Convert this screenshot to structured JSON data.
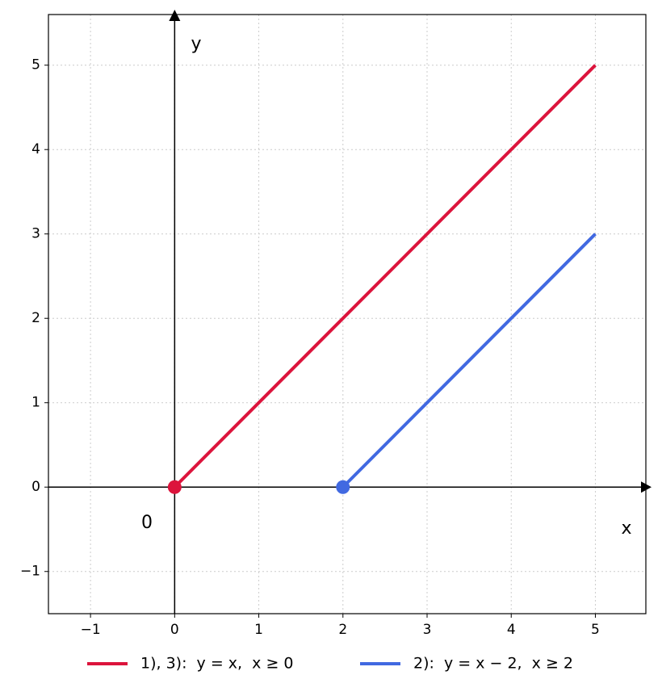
{
  "chart_data": {
    "type": "line",
    "annotations": {
      "y_axis": "y",
      "x_axis": "x",
      "origin": "0"
    },
    "series": [
      {
        "name": "1), 3):  y = x,  x ≥ 0",
        "color": "#dc143c",
        "x": [
          0,
          5
        ],
        "values": [
          0,
          5
        ]
      },
      {
        "name": "2):  y = x − 2,  x ≥ 2",
        "color": "#4169e1",
        "x": [
          2,
          5
        ],
        "values": [
          0,
          3
        ]
      }
    ],
    "xlim": [
      -1.5,
      5.6
    ],
    "ylim": [
      -1.5,
      5.6
    ],
    "xticks": [
      {
        "value": -1,
        "label": "−1"
      },
      0,
      1,
      2,
      3,
      4,
      5
    ],
    "yticks": [
      {
        "value": -1,
        "label": "−1"
      },
      0,
      1,
      2,
      3,
      4,
      5
    ],
    "grid": true,
    "legend": "bottom"
  }
}
